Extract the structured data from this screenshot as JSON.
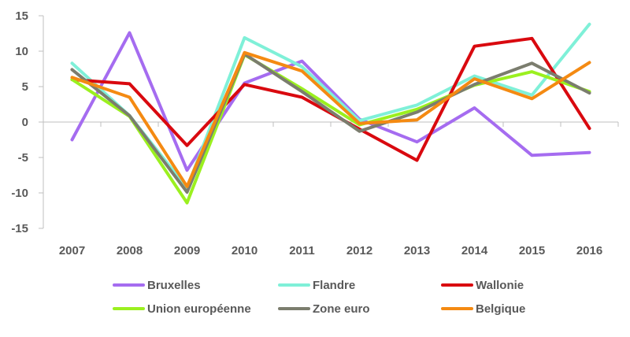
{
  "chart_data": {
    "type": "line",
    "title": "",
    "xlabel": "",
    "ylabel": "",
    "categories": [
      "2007",
      "2008",
      "2009",
      "2010",
      "2011",
      "2012",
      "2013",
      "2014",
      "2015",
      "2016"
    ],
    "ylim": [
      -15,
      15
    ],
    "yticks": [
      -15,
      -10,
      -5,
      0,
      5,
      10,
      15
    ],
    "ytick_labels": [
      "-15",
      "-10",
      "-5",
      "0",
      "5",
      "10",
      "15"
    ],
    "grid": false,
    "legend_position": "bottom",
    "series": [
      {
        "name": "Bruxelles",
        "color": "#a56cf0",
        "values": [
          -2.5,
          12.6,
          -6.8,
          5.5,
          8.6,
          0.4,
          -2.8,
          2.0,
          -4.7,
          -4.3
        ]
      },
      {
        "name": "Flandre",
        "color": "#7ff0d8",
        "values": [
          8.3,
          0.9,
          -9.3,
          11.9,
          7.8,
          0.2,
          2.4,
          6.5,
          3.8,
          13.8
        ]
      },
      {
        "name": "Wallonie",
        "color": "#d9090f",
        "values": [
          6.0,
          5.4,
          -3.3,
          5.3,
          3.5,
          -1.0,
          -5.4,
          10.7,
          11.8,
          -0.9
        ]
      },
      {
        "name": "Union européenne",
        "color": "#9bf01f",
        "values": [
          6.0,
          0.8,
          -11.4,
          9.5,
          4.7,
          -0.4,
          1.8,
          5.2,
          7.1,
          4.3
        ]
      },
      {
        "name": "Zone euro",
        "color": "#7b7d6e",
        "values": [
          7.4,
          0.9,
          -9.9,
          9.6,
          4.3,
          -1.3,
          1.4,
          5.3,
          8.3,
          4.1
        ]
      },
      {
        "name": "Belgique",
        "color": "#f48a12",
        "values": [
          6.3,
          3.5,
          -9.1,
          9.8,
          7.2,
          -0.2,
          0.3,
          6.1,
          3.3,
          8.4
        ]
      }
    ]
  }
}
